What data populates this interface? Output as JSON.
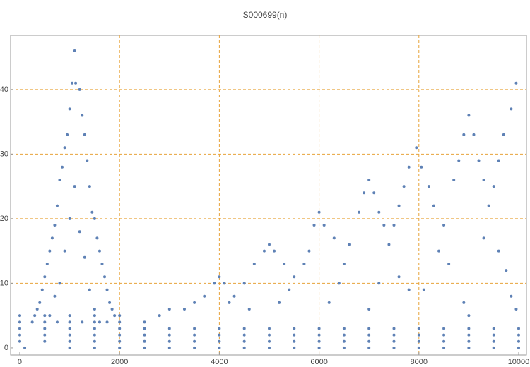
{
  "chart_data": {
    "type": "scatter",
    "title": "S000699(n)",
    "color": "#5e81b5",
    "grid": true,
    "xlim": [
      -184,
      10156
    ],
    "ylim": [
      -1.1,
      48.4
    ],
    "xticks": [
      0,
      2000,
      4000,
      6000,
      8000,
      10000
    ],
    "yticks": [
      0,
      10,
      20,
      30,
      40
    ],
    "x": [
      1100,
      1050,
      1120,
      1000,
      1200,
      950,
      1250,
      900,
      1300,
      850,
      1350,
      800,
      1400,
      750,
      1450,
      700,
      1500,
      650,
      1550,
      600,
      1600,
      550,
      1650,
      500,
      1700,
      450,
      1750,
      400,
      1800,
      350,
      1850,
      1000,
      1100,
      1200,
      900,
      1300,
      800,
      1400,
      700,
      1500,
      600,
      1600,
      300,
      1900,
      2500,
      2800,
      3000,
      3300,
      3500,
      3700,
      3900,
      4000,
      4100,
      4300,
      4500,
      4700,
      4900,
      5000,
      5100,
      5300,
      5500,
      5700,
      5900,
      6000,
      4200,
      4600,
      5200,
      5400,
      5800,
      6100,
      6300,
      6500,
      6600,
      6800,
      6900,
      7000,
      7100,
      7200,
      7300,
      7400,
      7500,
      7600,
      7700,
      7800,
      7950,
      6400,
      7000,
      7200,
      7600,
      7800,
      6200,
      8050,
      8200,
      8300,
      8500,
      8700,
      8800,
      8900,
      9000,
      9100,
      9200,
      9300,
      9400,
      9500,
      9600,
      9700,
      9850,
      9950,
      8100,
      8400,
      8600,
      8900,
      9000,
      9300,
      9600,
      9750,
      9850,
      9950,
      100,
      1000,
      1500,
      2000,
      2500,
      3000,
      3500,
      4000,
      4500,
      5000,
      5500,
      6000,
      6500,
      7000,
      7500,
      8000,
      8500,
      9000,
      9500,
      10000,
      0,
      500,
      1000,
      1500,
      2000,
      2500,
      3000,
      3500,
      4000,
      4500,
      5000,
      5500,
      6000,
      6500,
      7000,
      7500,
      8000,
      8500,
      9000,
      9500,
      10000,
      0,
      500,
      1000,
      1500,
      2000,
      2500,
      3000,
      3500,
      4000,
      4500,
      5000,
      5500,
      6000,
      6500,
      7000,
      7500,
      8000,
      8500,
      9000,
      9500,
      10000,
      0,
      500,
      1000,
      1500,
      2000,
      2500,
      3000,
      3500,
      4000,
      4500,
      5000,
      5500,
      6000,
      6500,
      7000,
      7500,
      8000,
      8500,
      9000,
      9500,
      10000,
      0,
      250,
      500,
      750,
      1000,
      1250,
      1500,
      1750,
      2000,
      0,
      500,
      1000,
      1500,
      2000
    ],
    "values": [
      46,
      41,
      41,
      37,
      40,
      33,
      36,
      31,
      33,
      28,
      29,
      26,
      25,
      22,
      21,
      19,
      20,
      17,
      17,
      15,
      15,
      13,
      13,
      11,
      11,
      9,
      9,
      7,
      7,
      6,
      6,
      20,
      25,
      18,
      15,
      14,
      10,
      9,
      8,
      6,
      5,
      4,
      5,
      5,
      4,
      5,
      6,
      6,
      7,
      8,
      10,
      11,
      10,
      8,
      10,
      13,
      15,
      16,
      15,
      13,
      11,
      13,
      19,
      21,
      7,
      6,
      7,
      9,
      15,
      19,
      17,
      13,
      16,
      21,
      24,
      26,
      24,
      21,
      19,
      16,
      19,
      22,
      25,
      28,
      31,
      10,
      6,
      10,
      11,
      9,
      7,
      28,
      25,
      22,
      19,
      26,
      29,
      33,
      36,
      33,
      29,
      26,
      22,
      25,
      29,
      33,
      37,
      41,
      9,
      15,
      13,
      7,
      5,
      17,
      15,
      12,
      8,
      6,
      0,
      0,
      0,
      0,
      0,
      0,
      0,
      0,
      0,
      0,
      0,
      0,
      0,
      0,
      0,
      0,
      0,
      0,
      0,
      0,
      1,
      1,
      1,
      1,
      1,
      1,
      1,
      1,
      1,
      1,
      1,
      1,
      1,
      1,
      1,
      1,
      1,
      1,
      1,
      1,
      1,
      2,
      2,
      2,
      2,
      2,
      2,
      2,
      2,
      2,
      2,
      2,
      2,
      2,
      2,
      2,
      2,
      2,
      2,
      2,
      2,
      2,
      3,
      3,
      3,
      3,
      3,
      3,
      3,
      3,
      3,
      3,
      3,
      3,
      3,
      3,
      3,
      3,
      3,
      3,
      3,
      3,
      3,
      4,
      4,
      4,
      4,
      4,
      4,
      4,
      4,
      4,
      5,
      5,
      5,
      5,
      5
    ]
  }
}
